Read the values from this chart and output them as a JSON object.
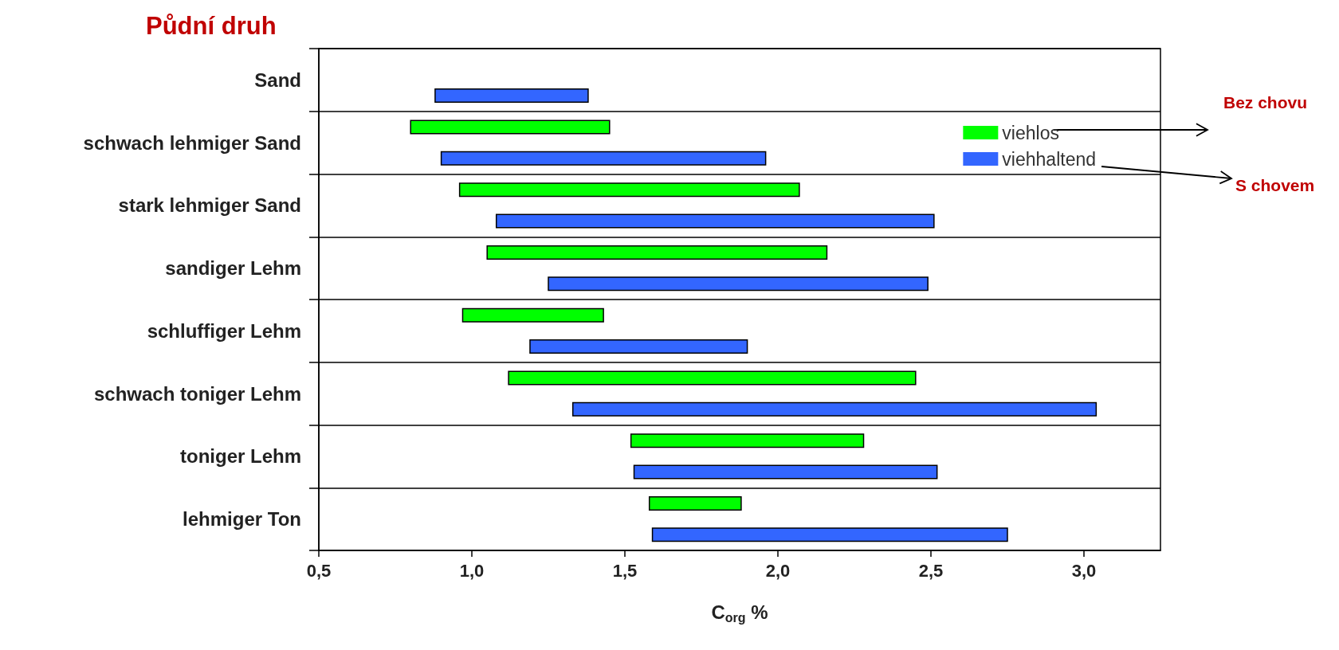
{
  "chart_data": {
    "type": "bar",
    "orientation": "horizontal",
    "title": "Půdní druh",
    "xlabel": "C$_{org}$ %",
    "categories": [
      "Sand",
      "schwach lehmiger Sand",
      "stark lehmiger Sand",
      "sandiger Lehm",
      "schluffiger Lehm",
      "schwach toniger Lehm",
      "toniger Lehm",
      "lehmiger Ton"
    ],
    "series": [
      {
        "name": "viehlos",
        "color": "#00ff00",
        "base": [
          null,
          0.8,
          0.96,
          1.05,
          0.97,
          1.12,
          1.52,
          1.58
        ],
        "values": [
          null,
          0.65,
          1.11,
          1.11,
          0.46,
          1.33,
          0.76,
          0.3
        ]
      },
      {
        "name": "viehhaltend",
        "color": "#3366ff",
        "base": [
          0.88,
          0.9,
          1.08,
          1.25,
          1.19,
          1.33,
          1.53,
          1.59
        ],
        "values": [
          0.5,
          1.06,
          1.43,
          1.24,
          0.71,
          1.71,
          0.99,
          1.16
        ]
      }
    ],
    "xlim": [
      0.5,
      3.25
    ],
    "xticks": [
      {
        "value": 0.5,
        "label": "0,5"
      },
      {
        "value": 1.0,
        "label": "1,0"
      },
      {
        "value": 1.5,
        "label": "1,5"
      },
      {
        "value": 2.0,
        "label": "2,0"
      },
      {
        "value": 2.5,
        "label": "2,5"
      },
      {
        "value": 3.0,
        "label": "3,0"
      }
    ],
    "grid": "y",
    "legend": "top right",
    "annotations": [
      "Bez chovu",
      "S chovem"
    ]
  }
}
